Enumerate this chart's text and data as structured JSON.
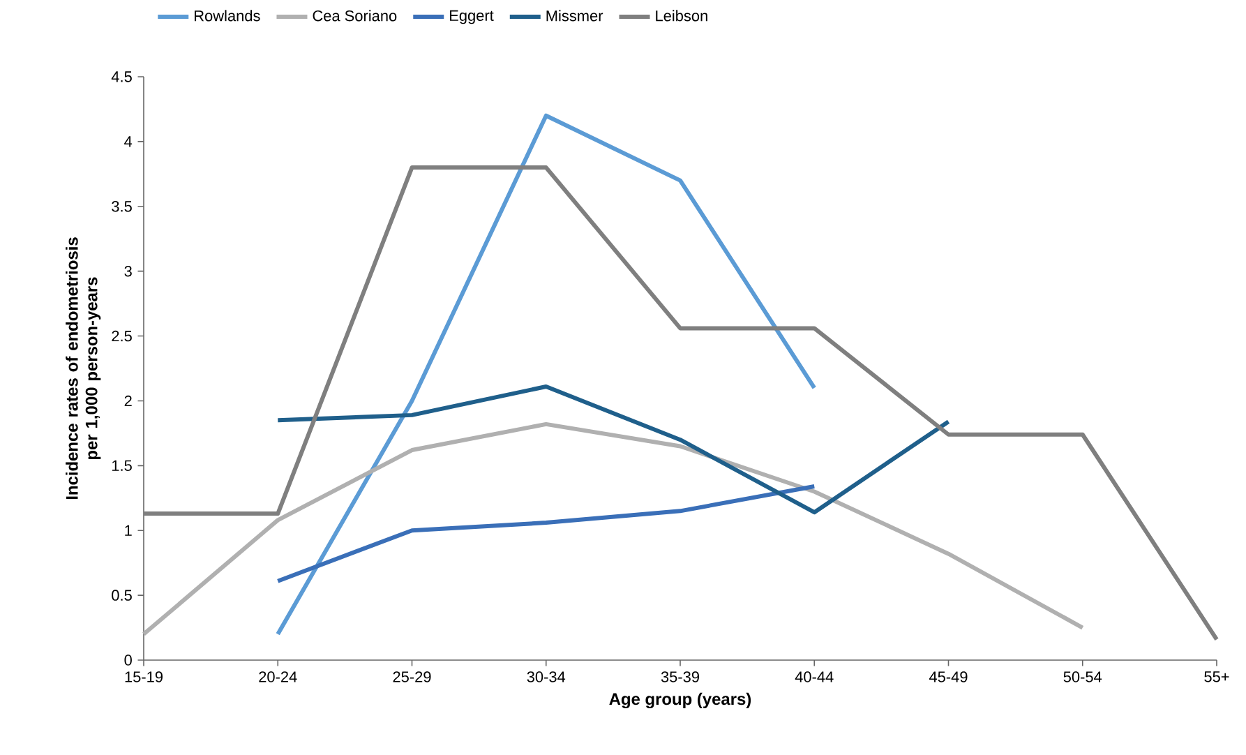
{
  "chart_data": {
    "type": "line",
    "xlabel": "Age group (years)",
    "ylabel": "Incidence rates of endometriosis per 1,000 person-years",
    "categories": [
      "15-19",
      "20-24",
      "25-29",
      "30-34",
      "35-39",
      "40-44",
      "45-49",
      "50-54",
      "55+"
    ],
    "series": [
      {
        "name": "Rowlands",
        "color": "#5b9bd5",
        "values": [
          null,
          0.2,
          2.0,
          4.2,
          3.7,
          2.1,
          null,
          null,
          null
        ]
      },
      {
        "name": "Cea Soriano",
        "color": "#b0b0b0",
        "values": [
          0.2,
          1.08,
          1.62,
          1.82,
          1.65,
          1.3,
          0.82,
          0.25,
          null
        ]
      },
      {
        "name": "Eggert",
        "color": "#3a6fb8",
        "values": [
          null,
          0.61,
          1.0,
          1.06,
          1.15,
          1.34,
          null,
          null,
          null
        ]
      },
      {
        "name": "Missmer",
        "color": "#1f5f8b",
        "values": [
          null,
          1.85,
          1.89,
          2.11,
          1.7,
          1.14,
          1.84,
          null,
          null
        ]
      },
      {
        "name": "Leibson",
        "color": "#7f7f7f",
        "values": [
          1.13,
          1.13,
          3.8,
          3.8,
          2.56,
          2.56,
          1.74,
          1.74,
          0.16
        ]
      }
    ],
    "ylim": [
      0,
      4.5
    ],
    "yticks": [
      0,
      0.5,
      1,
      1.5,
      2,
      2.5,
      3,
      3.5,
      4,
      4.5
    ],
    "legend": "top",
    "marker": "none",
    "line_style": "solid"
  }
}
